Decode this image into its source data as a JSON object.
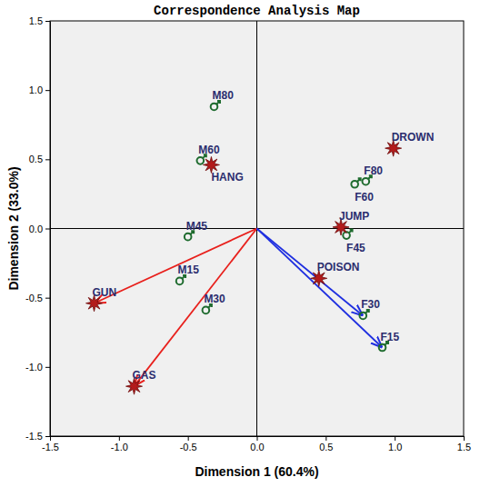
{
  "chart_data": {
    "type": "scatter",
    "title": "Correspondence Analysis Map",
    "x_label": "Dimension 1 (60.4%)",
    "y_label": "Dimension 2 (33.0%)",
    "xlim": [
      -1.5,
      1.5
    ],
    "ylim": [
      -1.5,
      1.5
    ],
    "xticks": [
      -1.5,
      {
        "value": -1.0,
        "label": "-1.0"
      },
      -0.5,
      {
        "value": 0,
        "label": "0.0"
      },
      0.5,
      {
        "value": 1.0,
        "label": "1.0"
      },
      1.5
    ],
    "yticks": [
      -1.5,
      {
        "value": -1.0,
        "label": "-1.0"
      },
      -0.5,
      {
        "value": 0,
        "label": "0.0"
      },
      0.5,
      {
        "value": 1.0,
        "label": "1.0"
      },
      1.5
    ],
    "grid": false,
    "series": [
      {
        "marker": "male",
        "color": "#1e6b2e",
        "labels": [
          "M80",
          "M60",
          "M45",
          "M15",
          "M30",
          "F80",
          "F60",
          "F45",
          "F30",
          "F15"
        ],
        "x": [
          -0.31,
          -0.41,
          -0.5,
          -0.56,
          -0.37,
          0.79,
          0.71,
          0.65,
          0.77,
          0.91
        ],
        "values": [
          0.88,
          0.49,
          -0.06,
          -0.38,
          -0.59,
          0.34,
          0.32,
          -0.05,
          -0.63,
          -0.86
        ]
      },
      {
        "marker": "star",
        "color": "#b31b1b",
        "labels": [
          "DROWN",
          "HANG",
          "JUMP",
          "POISON",
          "GUN",
          "GAS"
        ],
        "x": [
          0.99,
          -0.33,
          0.61,
          0.45,
          -1.18,
          -0.89
        ],
        "values": [
          0.58,
          0.46,
          0.01,
          -0.36,
          -0.54,
          -1.14
        ]
      }
    ],
    "arrows": [
      {
        "x": -1.18,
        "y": -0.54,
        "color": "#e8201c"
      },
      {
        "x": -0.89,
        "y": -1.14,
        "color": "#e8201c"
      },
      {
        "x": 0.77,
        "y": -0.63,
        "color": "#1f2fe0"
      },
      {
        "x": 0.91,
        "y": -0.86,
        "color": "#1f2fe0"
      }
    ]
  }
}
